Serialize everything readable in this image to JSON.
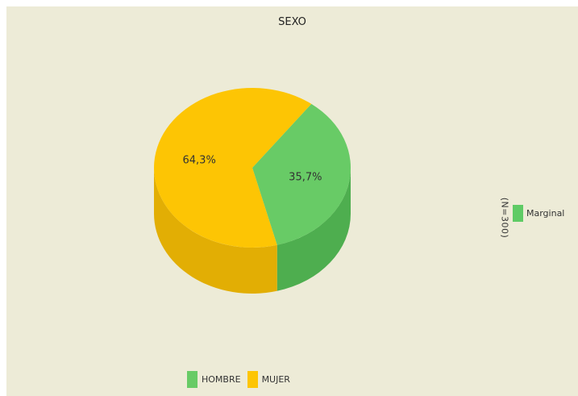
{
  "colors": {
    "background": "#EDEBD7",
    "hombre_top": "#68CB66",
    "hombre_side": "#4EAE4F",
    "mujer_top": "#FDC504",
    "mujer_side": "#E2AE04",
    "marginal_swatch": "#5FCB65"
  },
  "chart_data": {
    "type": "pie",
    "title": "SEXO",
    "series": [
      {
        "name": "HOMBRE",
        "value": 35.7,
        "label": "35,7%"
      },
      {
        "name": "MUJER",
        "value": 64.3,
        "label": "64,3%"
      }
    ],
    "legend": {
      "position": "bottom",
      "items": [
        "HOMBRE",
        "MUJER"
      ]
    },
    "side_legend": {
      "position": "right",
      "label": "Marginal",
      "note": "(N=300)"
    }
  }
}
